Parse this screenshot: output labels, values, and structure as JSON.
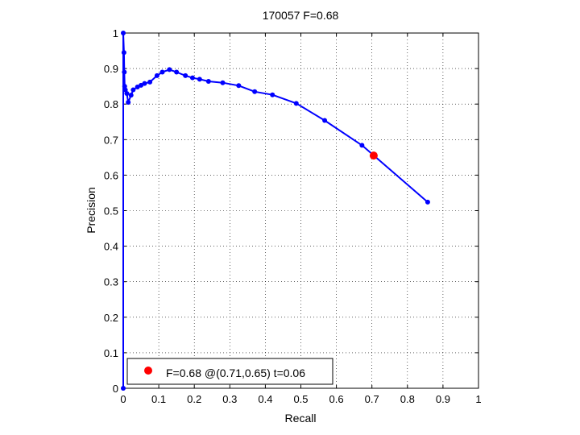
{
  "chart_data": {
    "type": "line",
    "title": "170057 F=0.68",
    "xlabel": "Recall",
    "ylabel": "Precision",
    "xlim": [
      0,
      1
    ],
    "ylim": [
      0,
      1
    ],
    "xticks": [
      "0",
      "0.1",
      "0.2",
      "0.3",
      "0.4",
      "0.5",
      "0.6",
      "0.7",
      "0.8",
      "0.9",
      "1"
    ],
    "yticks": [
      "0",
      "0.1",
      "0.2",
      "0.3",
      "0.4",
      "0.5",
      "0.6",
      "0.7",
      "0.8",
      "0.9",
      "1"
    ],
    "grid": true,
    "series": [
      {
        "name": "",
        "color": "#0000ff",
        "points": [
          [
            0.0,
            0.0
          ],
          [
            0.0,
            1.0
          ],
          [
            0.002,
            0.945
          ],
          [
            0.003,
            0.89
          ],
          [
            0.004,
            0.85
          ],
          [
            0.006,
            0.84
          ],
          [
            0.01,
            0.83
          ],
          [
            0.014,
            0.805
          ],
          [
            0.022,
            0.825
          ],
          [
            0.028,
            0.84
          ],
          [
            0.04,
            0.848
          ],
          [
            0.05,
            0.853
          ],
          [
            0.06,
            0.858
          ],
          [
            0.075,
            0.862
          ],
          [
            0.095,
            0.88
          ],
          [
            0.11,
            0.89
          ],
          [
            0.13,
            0.897
          ],
          [
            0.15,
            0.89
          ],
          [
            0.175,
            0.88
          ],
          [
            0.195,
            0.874
          ],
          [
            0.215,
            0.87
          ],
          [
            0.24,
            0.864
          ],
          [
            0.28,
            0.86
          ],
          [
            0.325,
            0.852
          ],
          [
            0.37,
            0.835
          ],
          [
            0.42,
            0.826
          ],
          [
            0.487,
            0.802
          ],
          [
            0.567,
            0.754
          ],
          [
            0.672,
            0.684
          ],
          [
            0.857,
            0.524
          ]
        ]
      }
    ],
    "highlight": {
      "color": "#ff0000",
      "point": [
        0.705,
        0.655
      ]
    },
    "legend": {
      "label": "F=0.68 @(0.71,0.65) t=0.06",
      "placement": "bottom-left"
    }
  }
}
